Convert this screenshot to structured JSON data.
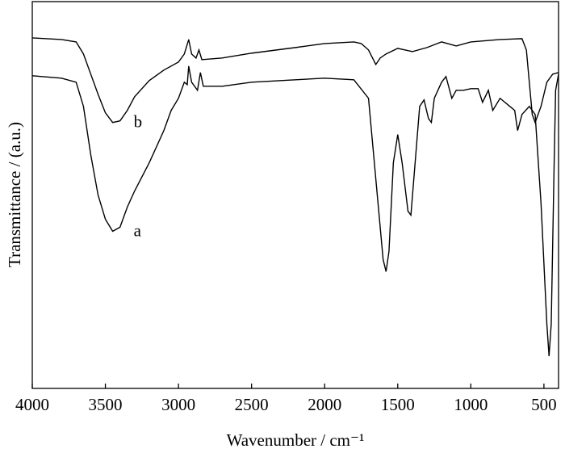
{
  "chart_data": {
    "type": "line",
    "x_label": "Wavenumber / cm⁻¹",
    "y_label": "Transmittance / (a.u.)",
    "xlim": [
      4000,
      400
    ],
    "ylim": [
      0,
      480
    ],
    "xticks": [
      4000,
      3500,
      3000,
      2500,
      2000,
      1500,
      1000,
      500
    ],
    "series": [
      {
        "name": "b",
        "color": "#000000",
        "x": [
          4000,
          3800,
          3700,
          3650,
          3600,
          3550,
          3500,
          3450,
          3400,
          3350,
          3300,
          3200,
          3100,
          3000,
          2960,
          2930,
          2910,
          2880,
          2860,
          2840,
          2700,
          2500,
          2200,
          2000,
          1800,
          1750,
          1700,
          1650,
          1620,
          1580,
          1500,
          1400,
          1300,
          1200,
          1100,
          1000,
          800,
          650,
          620,
          600,
          580,
          560,
          520,
          480,
          440,
          400
        ],
        "values": [
          435,
          433,
          430,
          415,
          390,
          365,
          342,
          330,
          332,
          345,
          362,
          382,
          395,
          405,
          415,
          433,
          415,
          410,
          420,
          408,
          410,
          416,
          423,
          428,
          430,
          428,
          420,
          402,
          410,
          415,
          422,
          418,
          423,
          430,
          425,
          430,
          433,
          434,
          420,
          380,
          340,
          330,
          350,
          380,
          390,
          392
        ]
      },
      {
        "name": "a",
        "color": "#000000",
        "x": [
          4000,
          3800,
          3700,
          3650,
          3600,
          3550,
          3500,
          3450,
          3400,
          3350,
          3300,
          3200,
          3100,
          3050,
          3000,
          2960,
          2940,
          2930,
          2910,
          2870,
          2850,
          2830,
          2700,
          2500,
          2200,
          2000,
          1800,
          1700,
          1650,
          1600,
          1580,
          1560,
          1530,
          1500,
          1470,
          1430,
          1410,
          1390,
          1350,
          1320,
          1290,
          1270,
          1250,
          1200,
          1170,
          1130,
          1100,
          1050,
          1000,
          950,
          920,
          880,
          850,
          800,
          700,
          680,
          650,
          600,
          560,
          520,
          480,
          465,
          450,
          430,
          420,
          400
        ],
        "values": [
          388,
          385,
          380,
          350,
          290,
          240,
          210,
          195,
          200,
          225,
          245,
          280,
          320,
          345,
          360,
          380,
          377,
          400,
          380,
          370,
          392,
          375,
          375,
          380,
          383,
          385,
          383,
          360,
          260,
          160,
          145,
          170,
          280,
          315,
          280,
          220,
          215,
          260,
          350,
          358,
          335,
          330,
          360,
          380,
          387,
          360,
          370,
          370,
          372,
          372,
          355,
          370,
          345,
          360,
          345,
          320,
          340,
          350,
          340,
          230,
          80,
          40,
          80,
          280,
          370,
          390
        ]
      }
    ]
  }
}
